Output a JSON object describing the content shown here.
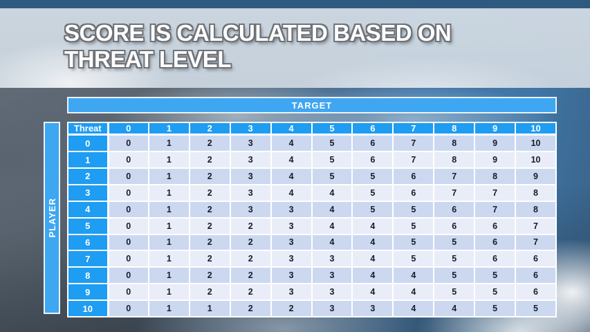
{
  "slide": {
    "title": "SCORE IS CALCULATED BASED ON THREAT LEVEL",
    "title_line1": "SCORE IS CALCULATED BASED ON",
    "title_line2": "THREAT LEVEL"
  },
  "matrix": {
    "target_label": "TARGET",
    "player_label": "PLAYER",
    "corner_label": "Threat",
    "col_headers": [
      "0",
      "1",
      "2",
      "3",
      "4",
      "5",
      "6",
      "7",
      "8",
      "9",
      "10"
    ],
    "rows": [
      {
        "header": "0",
        "values": [
          0,
          1,
          2,
          3,
          4,
          5,
          6,
          7,
          8,
          9,
          10
        ]
      },
      {
        "header": "1",
        "values": [
          0,
          1,
          2,
          3,
          4,
          5,
          6,
          7,
          8,
          9,
          10
        ]
      },
      {
        "header": "2",
        "values": [
          0,
          1,
          2,
          3,
          4,
          5,
          5,
          6,
          7,
          8,
          9
        ]
      },
      {
        "header": "3",
        "values": [
          0,
          1,
          2,
          3,
          4,
          4,
          5,
          6,
          7,
          7,
          8
        ]
      },
      {
        "header": "4",
        "values": [
          0,
          1,
          2,
          3,
          3,
          4,
          5,
          5,
          6,
          7,
          8
        ]
      },
      {
        "header": "5",
        "values": [
          0,
          1,
          2,
          2,
          3,
          4,
          4,
          5,
          6,
          6,
          7
        ]
      },
      {
        "header": "6",
        "values": [
          0,
          1,
          2,
          2,
          3,
          4,
          4,
          5,
          5,
          6,
          7
        ]
      },
      {
        "header": "7",
        "values": [
          0,
          1,
          2,
          2,
          3,
          3,
          4,
          5,
          5,
          6,
          6
        ]
      },
      {
        "header": "8",
        "values": [
          0,
          1,
          2,
          2,
          3,
          3,
          4,
          4,
          5,
          5,
          6
        ]
      },
      {
        "header": "9",
        "values": [
          0,
          1,
          2,
          2,
          3,
          3,
          4,
          4,
          5,
          5,
          6
        ]
      },
      {
        "header": "10",
        "values": [
          0,
          1,
          1,
          2,
          2,
          3,
          3,
          4,
          4,
          5,
          5
        ]
      }
    ]
  },
  "colors": {
    "header_blue": "#1e9df2",
    "band_blue": "#3fa6f2",
    "row_shade_a": "#ccd8f0",
    "row_shade_b": "#e8edf8",
    "top_strip": "#2e5a80",
    "title_band": "#ccd6e0",
    "title_text": "#ffffff",
    "cell_text": "#181c28"
  }
}
